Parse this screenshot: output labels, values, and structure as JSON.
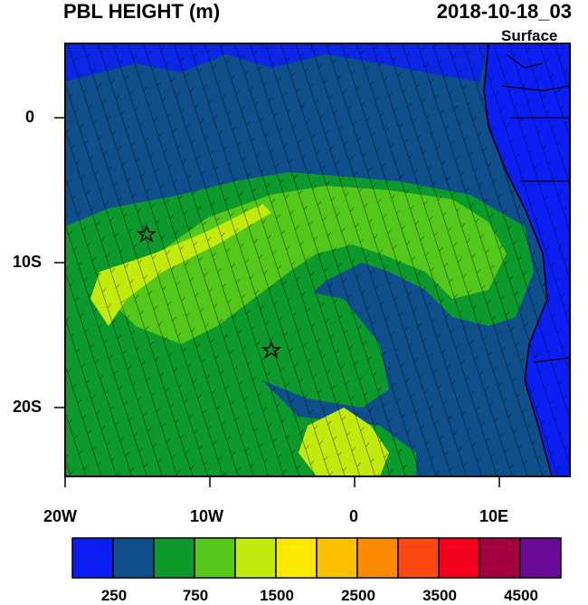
{
  "header": {
    "title": "PBL HEIGHT (m)",
    "datetime": "2018-10-18_03",
    "level": "Surface"
  },
  "axes": {
    "x_tick_labels": [
      "20W",
      "10W",
      "0",
      "10E"
    ],
    "y_tick_labels": [
      "0",
      "10S",
      "20S"
    ]
  },
  "colorbar": {
    "colors": [
      "#0b1ff5",
      "#0e4f8c",
      "#0d9a2c",
      "#54c81a",
      "#c3ea0d",
      "#fbea00",
      "#fcbf00",
      "#fb8a00",
      "#fa4a12",
      "#f3001d",
      "#a3003f",
      "#6b0a98"
    ],
    "labels": [
      "250",
      "750",
      "1500",
      "2500",
      "3500",
      "4500"
    ]
  },
  "map_colors": {
    "ocean_low": "#0e4f8c",
    "very_low": "#0b1ff5",
    "mid": "#0d9a2c",
    "high": "#54c81a",
    "higher": "#c3ea0d",
    "peak": "#fbea00",
    "land": "#0b1ff5"
  },
  "markers": [
    {
      "name": "star-marker-north",
      "lon": -14.4,
      "lat": -8.0
    },
    {
      "name": "star-marker-south",
      "lon": -5.7,
      "lat": -16.0
    }
  ]
}
